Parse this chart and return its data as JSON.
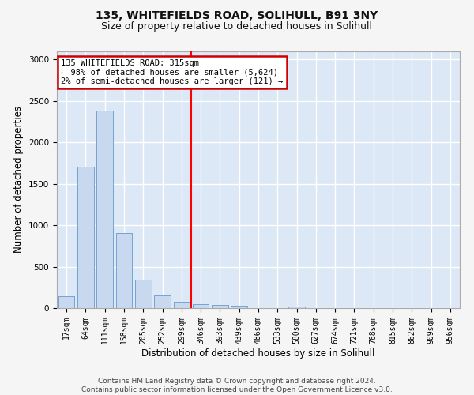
{
  "title_line1": "135, WHITEFIELDS ROAD, SOLIHULL, B91 3NY",
  "title_line2": "Size of property relative to detached houses in Solihull",
  "xlabel": "Distribution of detached houses by size in Solihull",
  "ylabel": "Number of detached properties",
  "bin_labels": [
    "17sqm",
    "64sqm",
    "111sqm",
    "158sqm",
    "205sqm",
    "252sqm",
    "299sqm",
    "346sqm",
    "393sqm",
    "439sqm",
    "486sqm",
    "533sqm",
    "580sqm",
    "627sqm",
    "674sqm",
    "721sqm",
    "768sqm",
    "815sqm",
    "862sqm",
    "909sqm",
    "956sqm"
  ],
  "bar_heights": [
    140,
    1710,
    2380,
    910,
    340,
    155,
    80,
    50,
    35,
    25,
    0,
    0,
    20,
    0,
    0,
    0,
    0,
    0,
    0,
    0,
    0
  ],
  "bar_color": "#c8d9ef",
  "bar_edge_color": "#6699cc",
  "vline_x": 6.5,
  "annotation_title": "135 WHITEFIELDS ROAD: 315sqm",
  "annotation_line1": "← 98% of detached houses are smaller (5,624)",
  "annotation_line2": "2% of semi-detached houses are larger (121) →",
  "annotation_box_color": "#ffffff",
  "annotation_box_edge_color": "#cc0000",
  "footer_line1": "Contains HM Land Registry data © Crown copyright and database right 2024.",
  "footer_line2": "Contains public sector information licensed under the Open Government Licence v3.0.",
  "ylim": [
    0,
    3100
  ],
  "fig_bg_color": "#f5f5f5",
  "plot_bg_color": "#dce8f5",
  "grid_color": "#ffffff",
  "title_fontsize": 10,
  "subtitle_fontsize": 9,
  "tick_fontsize": 7,
  "ylabel_fontsize": 8.5,
  "xlabel_fontsize": 8.5,
  "footer_fontsize": 6.5
}
